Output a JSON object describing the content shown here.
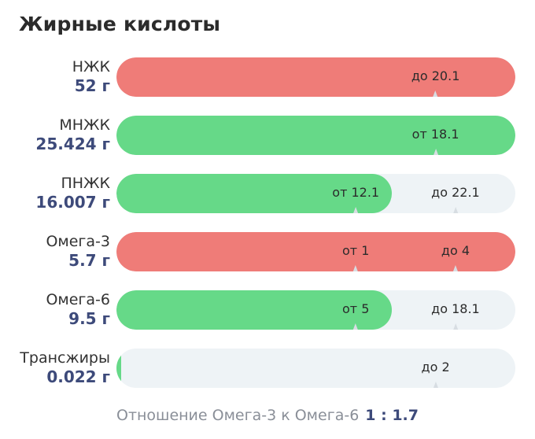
{
  "title": "Жирные кислоты",
  "colors": {
    "over": "#ef7c78",
    "ok": "#66d988",
    "track": "#eef3f6",
    "value_text": "#3d4a7a"
  },
  "rows": [
    {
      "name": "НЖК",
      "value": "52 г",
      "status": "over",
      "fill_fraction": 1.0,
      "markers": [
        {
          "text": "до 20.1",
          "fraction": 0.8
        }
      ]
    },
    {
      "name": "МНЖК",
      "value": "25.424 г",
      "status": "ok",
      "fill_fraction": 1.0,
      "markers": [
        {
          "text": "от 18.1",
          "fraction": 0.8
        }
      ]
    },
    {
      "name": "ПНЖК",
      "value": "16.007 г",
      "status": "ok",
      "fill_fraction": 0.69,
      "markers": [
        {
          "text": "от 12.1",
          "fraction": 0.6
        },
        {
          "text": "до 22.1",
          "fraction": 0.85
        }
      ]
    },
    {
      "name": "Омега-3",
      "value": "5.7 г",
      "status": "over",
      "fill_fraction": 1.0,
      "markers": [
        {
          "text": "от 1",
          "fraction": 0.6
        },
        {
          "text": "до 4",
          "fraction": 0.85
        }
      ]
    },
    {
      "name": "Омега-6",
      "value": "9.5 г",
      "status": "ok",
      "fill_fraction": 0.69,
      "markers": [
        {
          "text": "от 5",
          "fraction": 0.6
        },
        {
          "text": "до 18.1",
          "fraction": 0.85
        }
      ]
    },
    {
      "name": "Трансжиры",
      "value": "0.022 г",
      "status": "ok",
      "fill_fraction": 0.01,
      "markers": [
        {
          "text": "до 2",
          "fraction": 0.8
        }
      ]
    }
  ],
  "ratio": {
    "label": "Отношение Омега-3 к Омега-6",
    "value": "1 : 1.7"
  }
}
